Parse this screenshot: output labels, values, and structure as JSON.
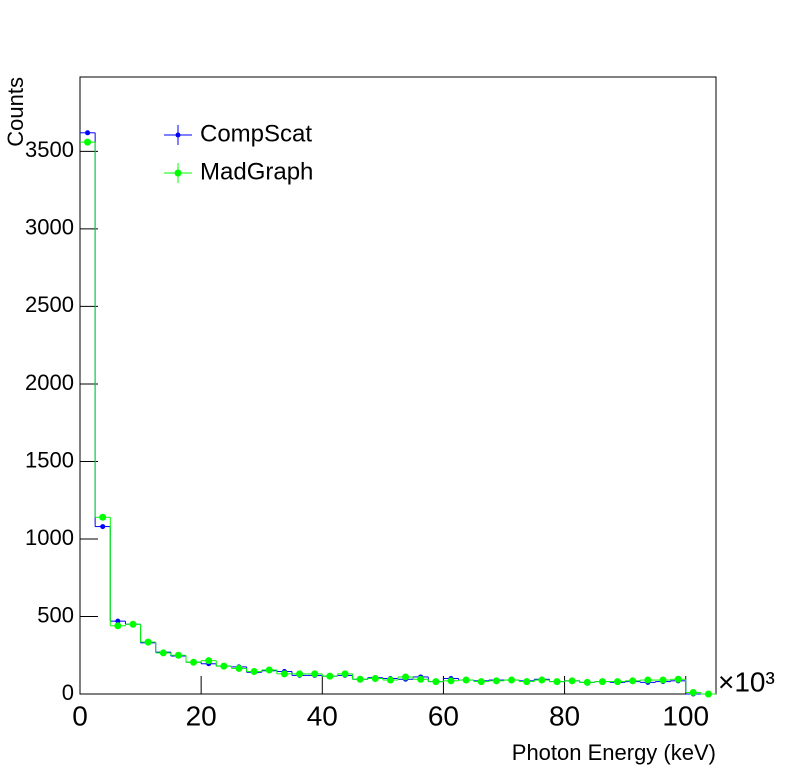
{
  "chart_data": {
    "type": "histogram",
    "x_label": "Photon Energy (keV)",
    "y_label": "Counts",
    "x_multiplier": "×10³",
    "bins": [
      0,
      2.5,
      5,
      7.5,
      10,
      12.5,
      15,
      17.5,
      20,
      22.5,
      25,
      27.5,
      30,
      32.5,
      35,
      37.5,
      40,
      42.5,
      45,
      47.5,
      50,
      52.5,
      55,
      57.5,
      60,
      62.5,
      65,
      67.5,
      70,
      72.5,
      75,
      77.5,
      80,
      82.5,
      85,
      87.5,
      90,
      92.5,
      95,
      97.5,
      100,
      102.5,
      105
    ],
    "series": [
      {
        "name": "CompScat",
        "color": "#0000ff",
        "values": [
          3620,
          1080,
          470,
          450,
          330,
          270,
          245,
          205,
          195,
          180,
          175,
          140,
          150,
          145,
          120,
          120,
          115,
          120,
          95,
          105,
          100,
          95,
          110,
          80,
          100,
          90,
          85,
          90,
          90,
          85,
          95,
          80,
          85,
          75,
          80,
          75,
          80,
          75,
          80,
          85,
          0,
          0
        ]
      },
      {
        "name": "MadGraph",
        "color": "#00ff00",
        "values": [
          3560,
          1140,
          440,
          450,
          335,
          265,
          250,
          205,
          215,
          180,
          165,
          145,
          155,
          130,
          130,
          130,
          115,
          130,
          95,
          100,
          90,
          110,
          95,
          80,
          85,
          90,
          80,
          85,
          90,
          80,
          90,
          80,
          85,
          75,
          80,
          80,
          85,
          90,
          90,
          95,
          10,
          0
        ]
      }
    ],
    "xlim": [
      0,
      105
    ],
    "ylim": [
      0,
      3980
    ],
    "xticks": [
      0,
      20,
      40,
      60,
      80,
      100
    ],
    "yticks": [
      0,
      500,
      1000,
      1500,
      2000,
      2500,
      3000,
      3500
    ],
    "legend": "top-left"
  }
}
